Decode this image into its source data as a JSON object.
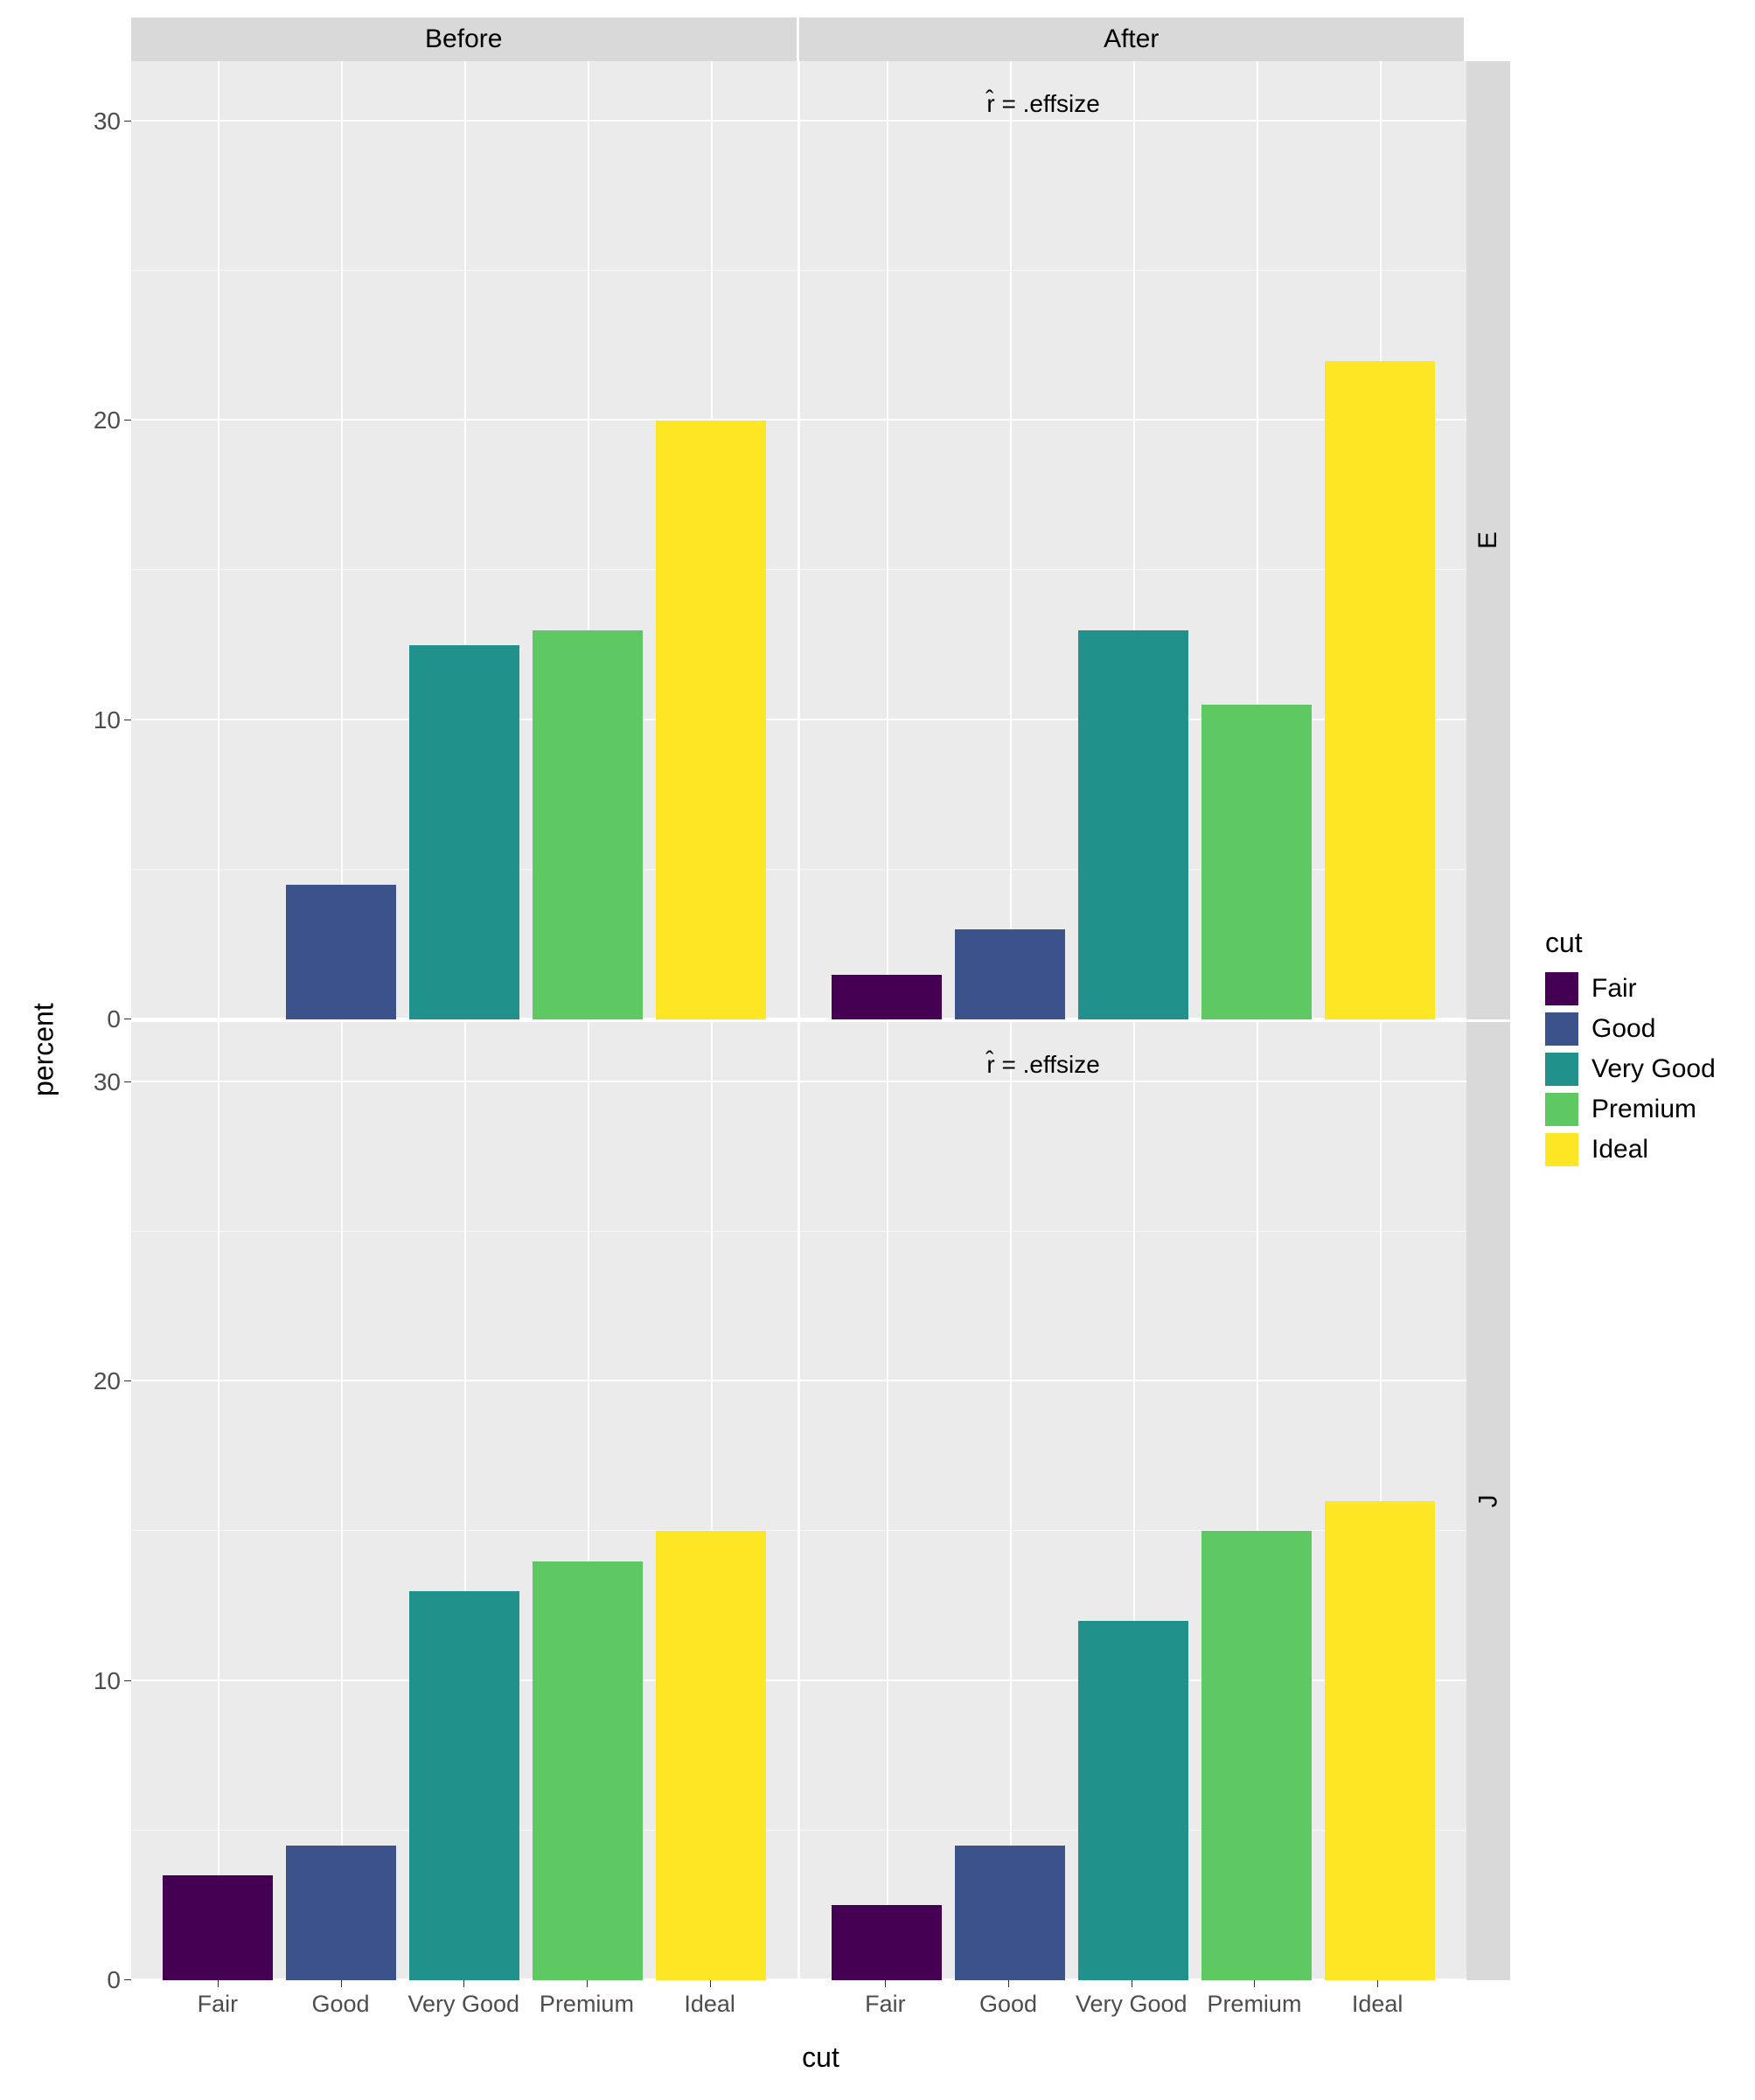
{
  "xlabel": "cut",
  "ylabel": "percent",
  "legend": {
    "title": "cut",
    "items": [
      {
        "label": "Fair",
        "color": "#440154"
      },
      {
        "label": "Good",
        "color": "#3b528b"
      },
      {
        "label": "Very Good",
        "color": "#21918c"
      },
      {
        "label": "Premium",
        "color": "#5ec962"
      },
      {
        "label": "Ideal",
        "color": "#fde725"
      }
    ]
  },
  "col_facets": [
    "Before",
    "After"
  ],
  "row_facets": [
    "E",
    "J"
  ],
  "categories": [
    "Fair",
    "Good",
    "Very Good",
    "Premium",
    "Ideal"
  ],
  "bar_colors": [
    "#440154",
    "#3b528b",
    "#21918c",
    "#5ec962",
    "#fde725"
  ],
  "panels": [
    [
      {
        "values": [
          0,
          4.5,
          12.5,
          13.0,
          20.0
        ],
        "annotation": null
      },
      {
        "values": [
          1.5,
          3.0,
          13.0,
          10.5,
          22.0
        ],
        "annotation": "r̂ = .effsize"
      }
    ],
    [
      {
        "values": [
          3.5,
          4.5,
          13.0,
          14.0,
          15.0
        ],
        "annotation": null
      },
      {
        "values": [
          2.5,
          4.5,
          12.0,
          15.0,
          16.0
        ],
        "annotation": "r̂ = .effsize"
      }
    ]
  ],
  "y_axis": {
    "min": 0,
    "max": 32,
    "ticks": [
      0,
      10,
      20,
      30
    ],
    "minor_ticks": [
      5,
      15,
      25
    ]
  },
  "x_positions_pct": [
    13,
    31.5,
    50,
    68.5,
    87
  ],
  "bar_width_pct": 16.5,
  "style": {
    "panel_bg": "#ebebeb",
    "strip_bg": "#d9d9d9",
    "grid_color": "#ffffff",
    "text_color": "#000000",
    "tick_text_color": "#4d4d4d",
    "axis_label_fontsize": 32,
    "tick_fontsize": 28,
    "strip_fontsize": 30,
    "legend_title_fontsize": 32,
    "legend_label_fontsize": 30,
    "annotation_fontsize": 28
  }
}
